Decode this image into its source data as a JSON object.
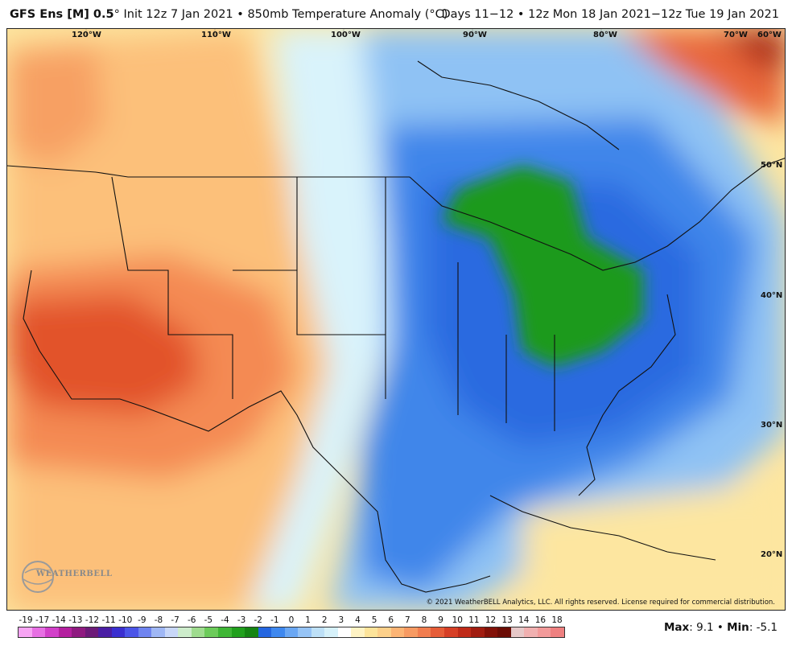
{
  "header": {
    "model": "GFS Ens [M] 0.5",
    "degree": "°",
    "init": "Init 12z 7 Jan 2021",
    "separator": "•",
    "field": "850mb Temperature Anomaly (°C)",
    "days": "Days 11−12",
    "valid": "12z Mon 18 Jan 2021−12z Tue 19 Jan 2021"
  },
  "map": {
    "lon_labels": [
      "120°W",
      "110°W",
      "100°W",
      "90°W",
      "80°W",
      "70°W",
      "60°W"
    ],
    "lat_labels": [
      "50°N",
      "40°N",
      "30°N",
      "20°N"
    ],
    "credit": "© 2021 WeatherBELL Analytics, LLC. All rights reserved. License required for commercial distribution.",
    "logo": "WEATHERBELL"
  },
  "colorbar": {
    "labels": [
      "-19",
      "-17",
      "-14",
      "-13",
      "-12",
      "-11",
      "-10",
      "-9",
      "-8",
      "-7",
      "-6",
      "-5",
      "-4",
      "-3",
      "-2",
      "-1",
      "0",
      "1",
      "2",
      "3",
      "4",
      "5",
      "6",
      "7",
      "8",
      "9",
      "10",
      "11",
      "12",
      "13",
      "14",
      "16",
      "18"
    ],
    "colors": [
      "#f7a4f3",
      "#e76fe3",
      "#d23fc9",
      "#b4209f",
      "#8f1a80",
      "#6c1a78",
      "#4a1ea4",
      "#3a2fd0",
      "#4b55e8",
      "#6f84f0",
      "#9fb7f5",
      "#c8d7f8",
      "#cdeccb",
      "#9fdc8f",
      "#6ccb5a",
      "#3fb636",
      "#21a01d",
      "#158413",
      "#2466e0",
      "#3e88ef",
      "#6aa7f3",
      "#96c4f6",
      "#bde0f7",
      "#d6f1fa",
      "#ffffff",
      "#fff3c4",
      "#fde49a",
      "#fdd08a",
      "#fcb474",
      "#f79a62",
      "#f17d4f",
      "#e65d38",
      "#d63f26",
      "#bf2a18",
      "#a11c10",
      "#821108",
      "#6b0c05",
      "#e6c8c8",
      "#f0b0b0",
      "#f29a9a",
      "#ee8080"
    ]
  },
  "stats": {
    "max_label": "Max",
    "max_value": ": 9.1",
    "sep": " • ",
    "min_label": "Min",
    "min_value": ": -5.1"
  }
}
